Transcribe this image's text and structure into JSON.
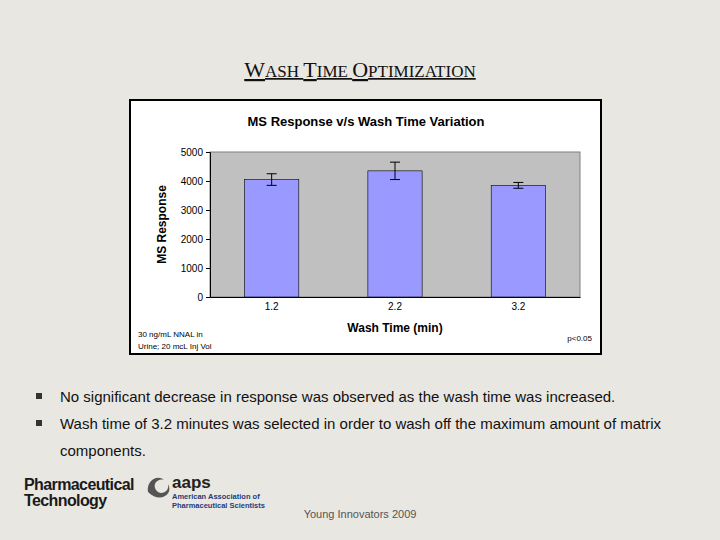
{
  "slide": {
    "title": "WASH TIME OPTIMIZATION",
    "bullets": [
      "No significant decrease in response was observed as the wash time was increased.",
      "Wash time of 3.2 minutes was selected in order to wash off the maximum amount of matrix components."
    ],
    "pharma_logo": [
      "Pharmaceutical",
      "Technology"
    ],
    "aaps_logo": [
      "aaps",
      "American Association of",
      "Pharmaceutical Scientists"
    ],
    "footer": "Young Innovators 2009"
  },
  "chart_data": {
    "type": "bar",
    "title": "MS Response v/s Wash Time Variation",
    "x_label": "Wash Time (min)",
    "y_label": "MS Response",
    "categories": [
      "1.2",
      "2.2",
      "3.2"
    ],
    "values": [
      4050,
      4350,
      3850
    ],
    "errors": [
      200,
      300,
      100
    ],
    "color": "#9999ff",
    "ylim": [
      0,
      5000
    ],
    "yticks": [
      0,
      1000,
      2000,
      3000,
      4000,
      5000
    ],
    "grid": false,
    "annotations": [
      "30 ng/mL NNAL in",
      "Urine; 20 mcL Inj Vol",
      "p<0.05"
    ]
  }
}
